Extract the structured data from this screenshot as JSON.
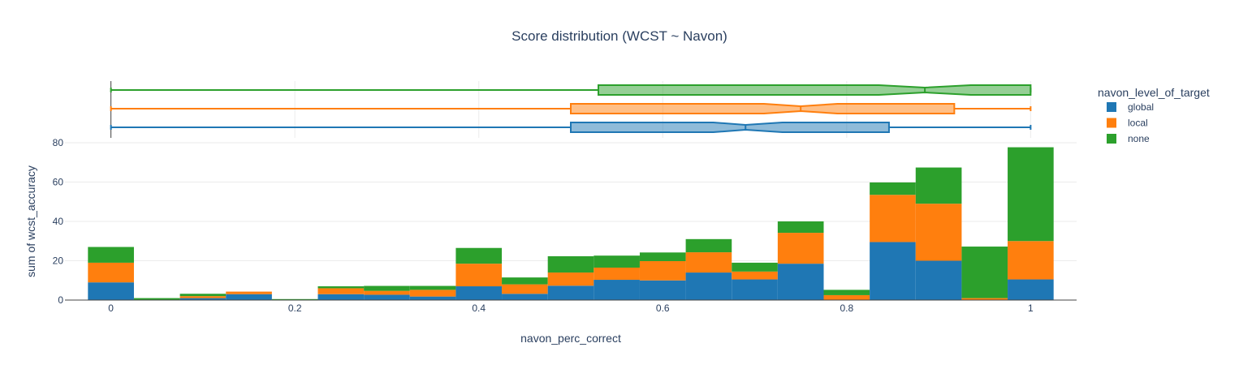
{
  "chart_data": {
    "type": "bar",
    "title": "Score distribution (WCST ~ Navon)",
    "xlabel": "navon_perc_correct",
    "ylabel": "sum of wcst_accuracy",
    "barmode": "stack",
    "xlim": [
      -0.05,
      1.05
    ],
    "ylim": [
      0,
      80
    ],
    "xticks": [
      0,
      0.2,
      0.4,
      0.6,
      0.8,
      1
    ],
    "xtick_labels": [
      "0",
      "0.2",
      "0.4",
      "0.6",
      "0.8",
      "1"
    ],
    "yticks": [
      0,
      20,
      40,
      60,
      80
    ],
    "ytick_labels": [
      "0",
      "20",
      "40",
      "60",
      "80"
    ],
    "grid": true,
    "legend_title": "navon_level_of_target",
    "legend_position": "top-right",
    "bin_width": 0.05,
    "bin_centers": [
      0,
      0.05,
      0.1,
      0.15,
      0.2,
      0.25,
      0.3,
      0.35,
      0.4,
      0.45,
      0.5,
      0.55,
      0.6,
      0.65,
      0.7,
      0.75,
      0.8,
      0.85,
      0.9,
      0.95,
      1.0
    ],
    "series": [
      {
        "name": "global",
        "color": "#1f77b4",
        "values": [
          9,
          0,
          1,
          3,
          0,
          3,
          2.7,
          1.8,
          7,
          3.2,
          7.3,
          10.3,
          10,
          14,
          10.5,
          18.5,
          0,
          29.5,
          20,
          0,
          10.5
        ]
      },
      {
        "name": "local",
        "color": "#ff7f0e",
        "values": [
          10,
          0,
          1,
          1.3,
          0,
          3,
          2,
          3.4,
          11.5,
          4.8,
          6.7,
          6.2,
          9.8,
          10.3,
          4,
          15.7,
          2.5,
          24,
          29,
          1,
          19.5
        ]
      },
      {
        "name": "none",
        "color": "#2ca02c",
        "values": [
          8,
          1,
          1.2,
          0,
          0.5,
          1,
          2.5,
          2,
          8,
          3.5,
          8.3,
          6.1,
          4.4,
          6.7,
          4.5,
          5.8,
          2.7,
          6.3,
          18.4,
          26.2,
          47.7
        ]
      }
    ],
    "marginal_boxplots": [
      {
        "name": "none",
        "color": "#2ca02c",
        "min": 0,
        "q1": 0.53,
        "median": 0.885,
        "q3": 1.0,
        "max": 1.0,
        "notch_low": 0.835,
        "notch_high": 0.935
      },
      {
        "name": "local",
        "color": "#ff7f0e",
        "min": 0,
        "q1": 0.5,
        "median": 0.75,
        "q3": 0.917,
        "max": 1.0,
        "notch_low": 0.71,
        "notch_high": 0.79
      },
      {
        "name": "global",
        "color": "#1f77b4",
        "min": 0,
        "q1": 0.5,
        "median": 0.69,
        "q3": 0.846,
        "max": 1.0,
        "notch_low": 0.655,
        "notch_high": 0.73
      }
    ]
  }
}
